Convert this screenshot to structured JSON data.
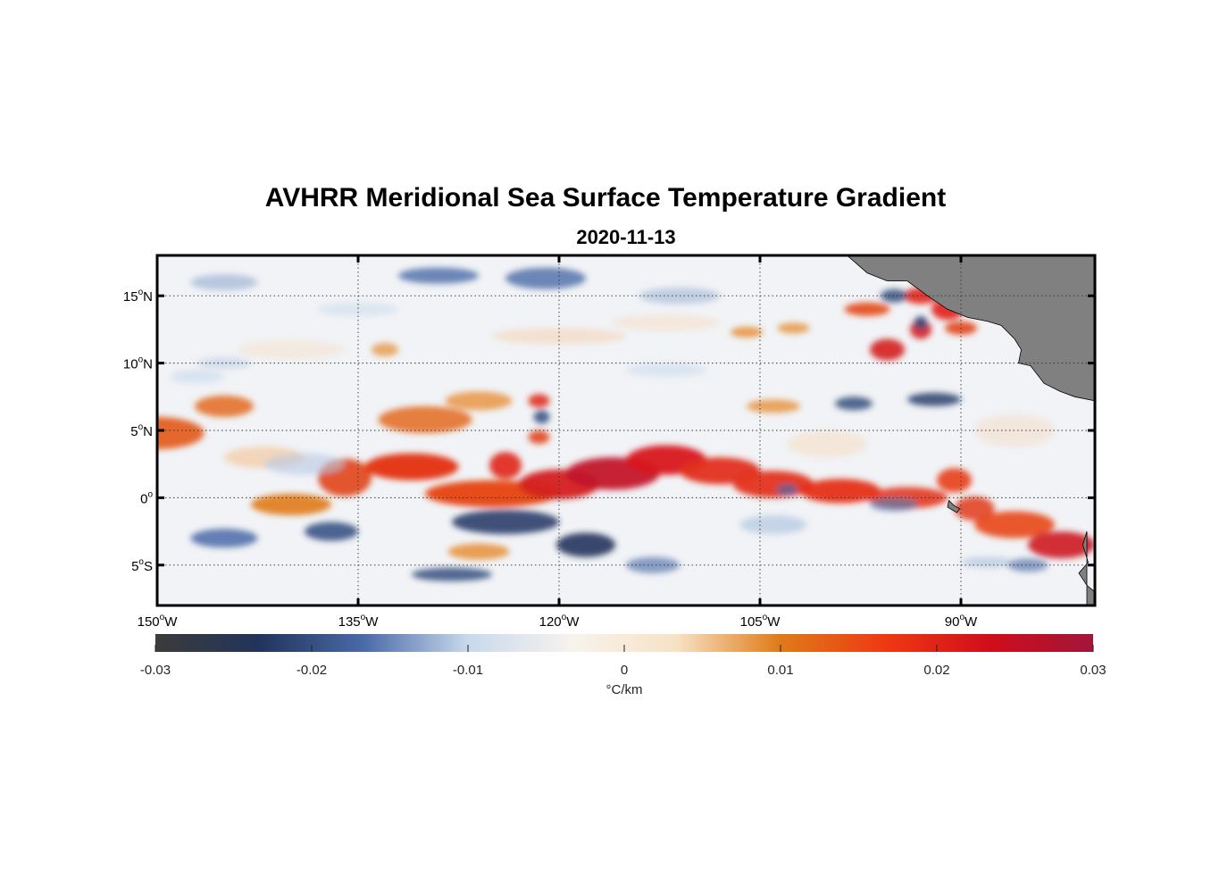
{
  "title": "AVHRR Meridional Sea Surface Temperature Gradient",
  "subtitle": "2020-11-13",
  "colorbar": {
    "unit_label": "°C/km",
    "range": [
      -0.03,
      0.03
    ],
    "ticks": [
      "-0.03",
      "-0.02",
      "-0.01",
      "0",
      "0.01",
      "0.02",
      "0.03"
    ],
    "tick_values": [
      -0.03,
      -0.02,
      -0.01,
      0,
      0.01,
      0.02,
      0.03
    ],
    "colormap": [
      "#3b3b3b",
      "#22345c",
      "#4a6aa8",
      "#c8d9ec",
      "#f7f3ee",
      "#f7e2c4",
      "#e07a18",
      "#ee3a12",
      "#d10d1b",
      "#a0163a"
    ]
  },
  "map": {
    "lon_range": [
      -150,
      -80
    ],
    "lat_range": [
      -8,
      18
    ],
    "land_color": "#808080",
    "gridlines": "on",
    "lon_ticks": [
      {
        "value": -150,
        "deg": "150",
        "hem": "W"
      },
      {
        "value": -135,
        "deg": "135",
        "hem": "W"
      },
      {
        "value": -120,
        "deg": "120",
        "hem": "W"
      },
      {
        "value": -105,
        "deg": "105",
        "hem": "W"
      },
      {
        "value": -90,
        "deg": "90",
        "hem": "W"
      }
    ],
    "lat_ticks": [
      {
        "value": 15,
        "deg": "15",
        "hem": "N"
      },
      {
        "value": 10,
        "deg": "10",
        "hem": "N"
      },
      {
        "value": 5,
        "deg": "5",
        "hem": "N"
      },
      {
        "value": 0,
        "deg": "0",
        "hem": ""
      },
      {
        "value": -5,
        "deg": "5",
        "hem": "S"
      }
    ]
  }
}
